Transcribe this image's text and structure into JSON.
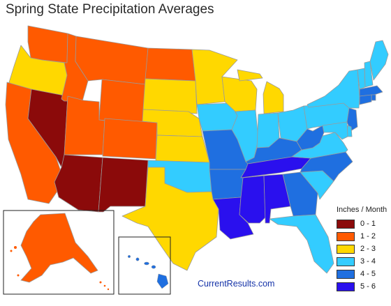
{
  "title": "Spring State Precipitation Averages",
  "credit": "CurrentResults.com",
  "legend": {
    "title": "Inches / Month",
    "items": [
      {
        "label": "0 - 1",
        "color": "#8b0a0a"
      },
      {
        "label": "1 - 2",
        "color": "#ff5a00"
      },
      {
        "label": "2 - 3",
        "color": "#ffd800"
      },
      {
        "label": "3 - 4",
        "color": "#33ccff"
      },
      {
        "label": "4 - 5",
        "color": "#1f6fe0"
      },
      {
        "label": "5 - 6",
        "color": "#2a10ee"
      }
    ]
  },
  "map": {
    "states": {
      "WA": "1-2",
      "OR": "2-3",
      "CA": "1-2",
      "NV": "0-1",
      "ID": "1-2",
      "MT": "1-2",
      "WY": "1-2",
      "UT": "1-2",
      "AZ": "0-1",
      "CO": "1-2",
      "NM": "0-1",
      "ND": "1-2",
      "SD": "2-3",
      "NE": "2-3",
      "KS": "2-3",
      "OK": "3-4",
      "TX": "2-3",
      "MN": "2-3",
      "IA": "3-4",
      "MO": "4-5",
      "AR": "4-5",
      "LA": "5-6",
      "WI": "2-3",
      "IL": "3-4",
      "MI": "2-3",
      "IN": "3-4",
      "OH": "3-4",
      "KY": "4-5",
      "TN": "5-6",
      "MS": "5-6",
      "AL": "5-6",
      "GA": "4-5",
      "FL": "3-4",
      "SC": "3-4",
      "NC": "4-5",
      "VA": "3-4",
      "WV": "4-5",
      "PA": "3-4",
      "NY": "3-4",
      "VT": "3-4",
      "NH": "3-4",
      "ME": "3-4",
      "MA": "4-5",
      "RI": "4-5",
      "CT": "4-5",
      "NJ": "4-5",
      "DE": "3-4",
      "MD": "3-4",
      "AK": "1-2",
      "HI": "4-5"
    }
  }
}
